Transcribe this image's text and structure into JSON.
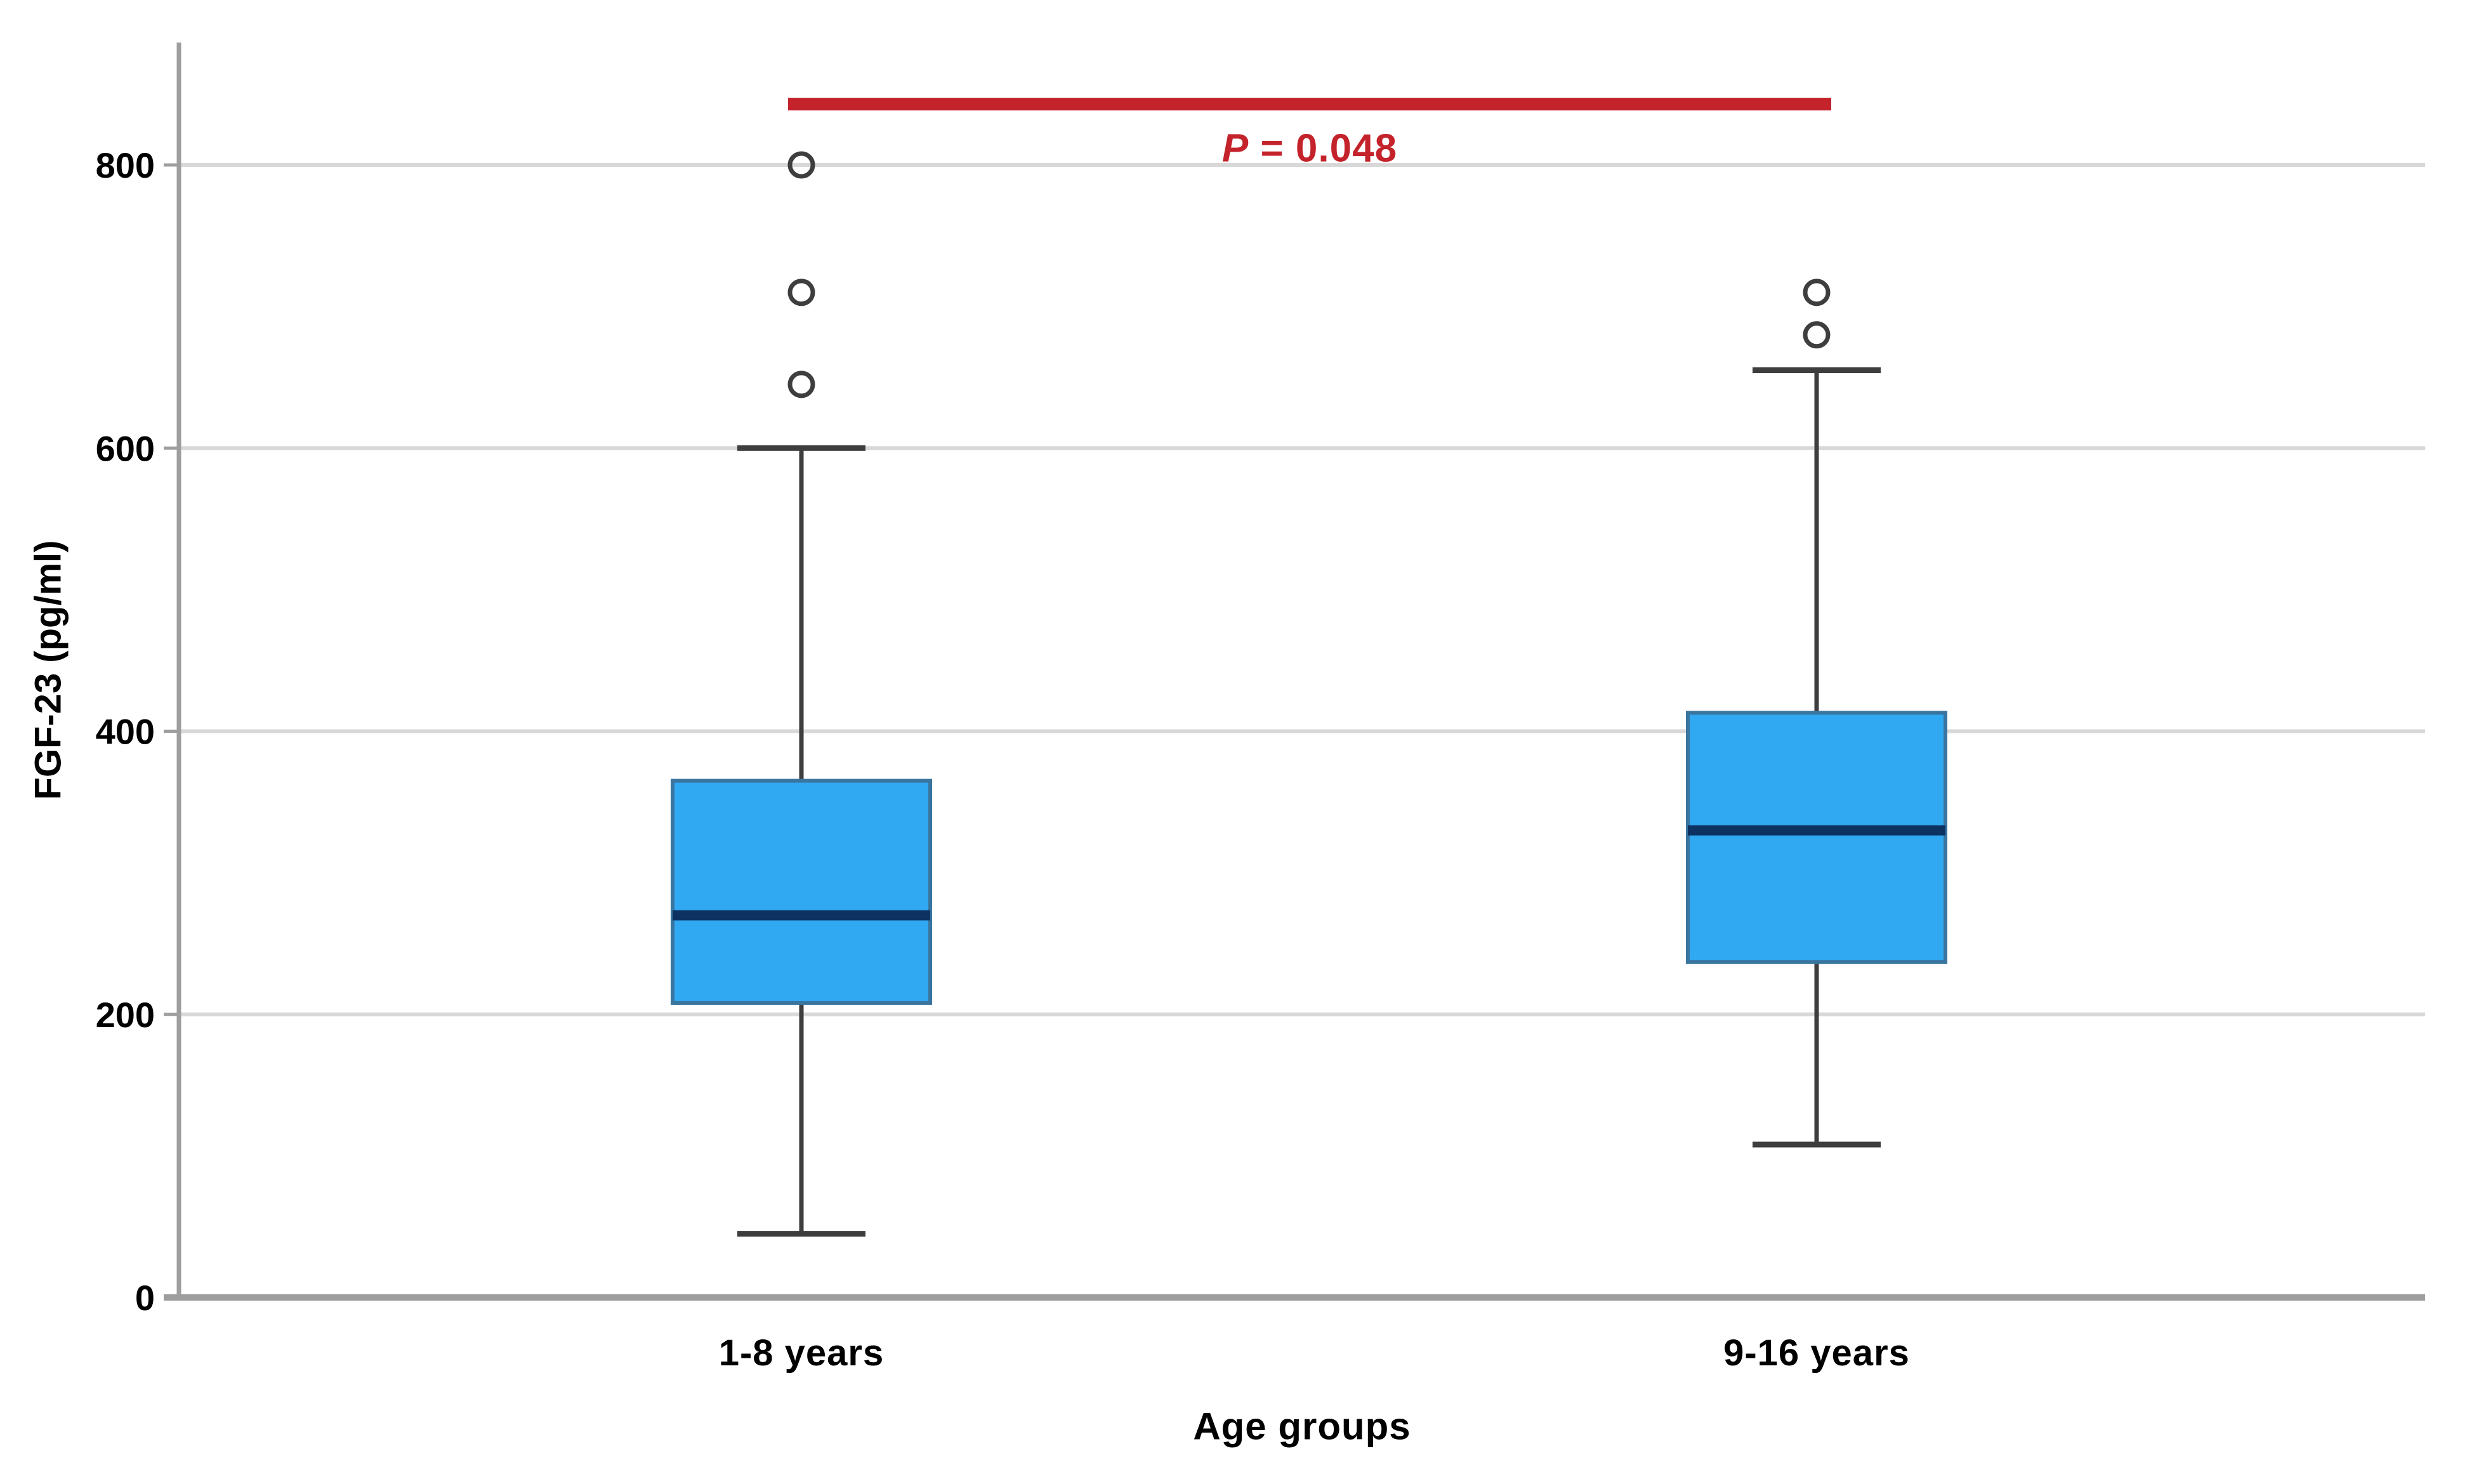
{
  "window": {
    "background": "#ffffff"
  },
  "chart_data": {
    "type": "boxplot",
    "title": "",
    "xlabel": "Age groups",
    "ylabel": "FGF-23 (pg/ml)",
    "y_ticks": [
      0,
      200,
      400,
      600,
      800
    ],
    "ylim": [
      0,
      880
    ],
    "grid": "horizontal gridlines at 200, 400, 600, 800",
    "legend": "none",
    "categories": [
      "1-8 years",
      "9-16 years"
    ],
    "series": [
      {
        "category": "1-8 years",
        "whisker_low": 45,
        "q1": 208,
        "median": 270,
        "q3": 365,
        "whisker_high": 600,
        "outliers": [
          645,
          710,
          800
        ]
      },
      {
        "category": "9-16 years",
        "whisker_low": 108,
        "q1": 237,
        "median": 330,
        "q3": 413,
        "whisker_high": 655,
        "outliers": [
          680,
          710
        ]
      }
    ],
    "significance": {
      "label": "P = 0.048",
      "bar_y_value": 843,
      "from_category": "1-8 years",
      "to_category": "9-16 years"
    },
    "colors": {
      "box_fill": "#31a8f2",
      "box_border": "#3a759f",
      "median": "#0b3261",
      "whisker": "#3e3e3e",
      "outlier": "#3e3e3e",
      "gridline": "#d8d8d8",
      "axis": "#9e9e9e",
      "significance": "#c4232b",
      "text": "#000000"
    }
  }
}
